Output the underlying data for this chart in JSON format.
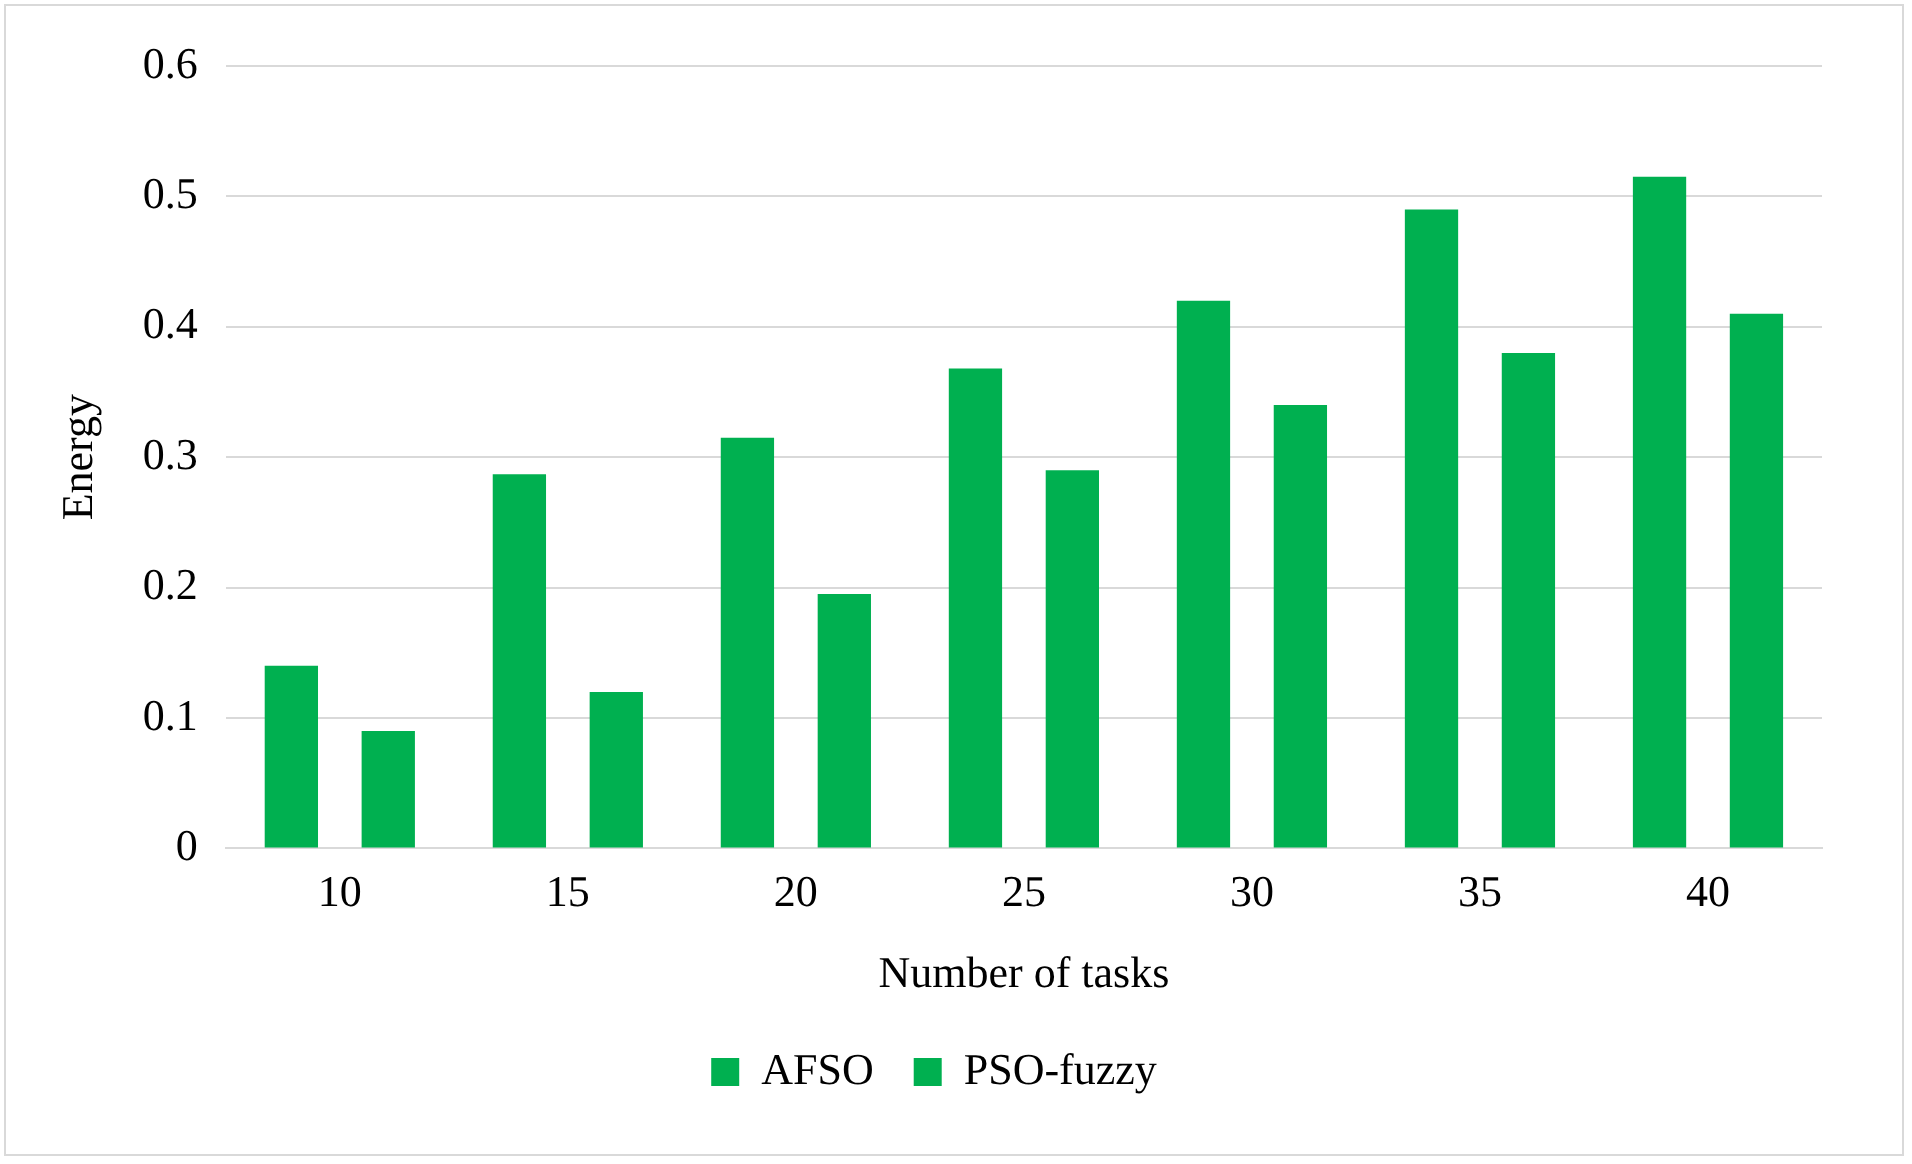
{
  "chart_data": {
    "type": "bar",
    "xlabel": "Number of tasks",
    "ylabel": "Energy",
    "categories": [
      "10",
      "15",
      "20",
      "25",
      "30",
      "35",
      "40"
    ],
    "series": [
      {
        "name": "AFSO",
        "color": "#00b050",
        "values": [
          0.14,
          0.287,
          0.315,
          0.368,
          0.42,
          0.49,
          0.515
        ]
      },
      {
        "name": "PSO-fuzzy",
        "color": "#00b050",
        "values": [
          0.09,
          0.12,
          0.195,
          0.29,
          0.34,
          0.38,
          0.41
        ]
      }
    ],
    "ylim": [
      0,
      0.6
    ],
    "yticks": [
      0,
      0.1,
      0.2,
      0.3,
      0.4,
      0.5,
      0.6
    ],
    "grid": "y",
    "legend": "bottom"
  }
}
